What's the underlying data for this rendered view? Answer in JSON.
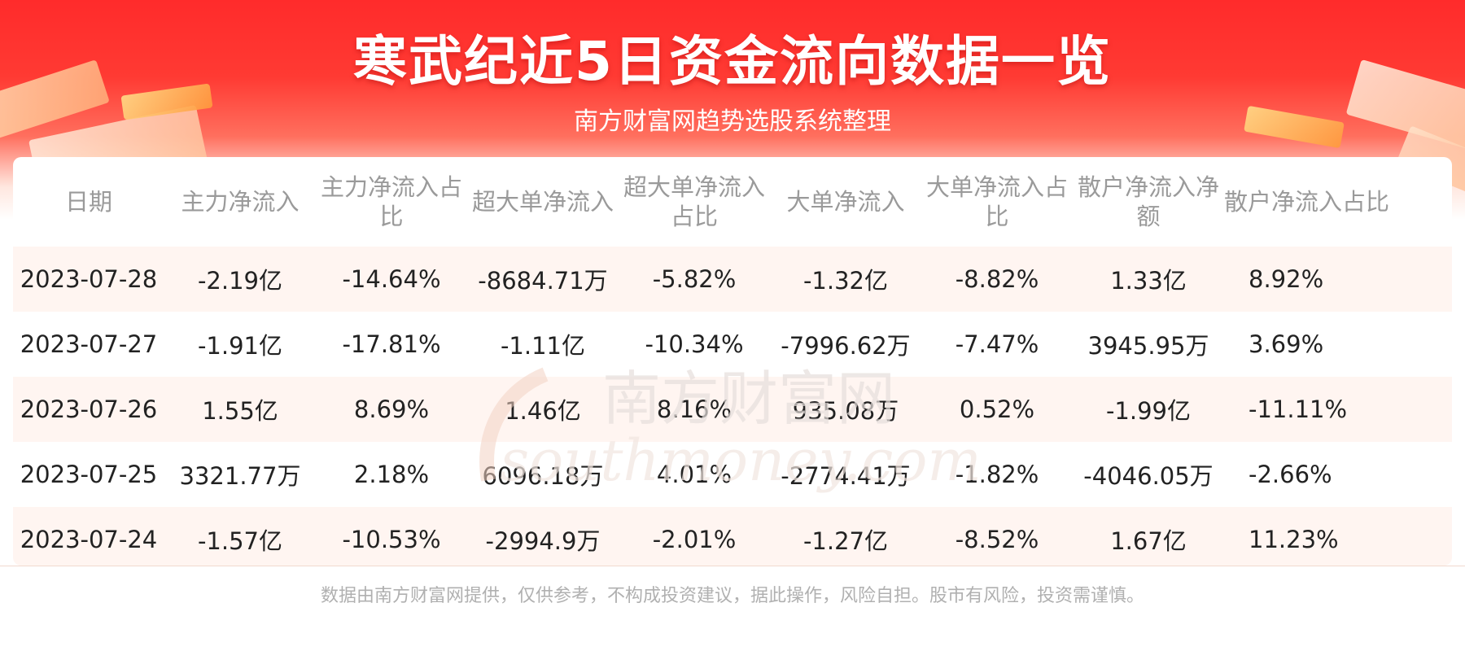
{
  "header": {
    "title": "寒武纪近5日资金流向数据一览",
    "subtitle": "南方财富网趋势选股系统整理"
  },
  "table": {
    "columns": [
      "日期",
      "主力净流入",
      "主力净流入占比",
      "超大单净流入",
      "超大单净流入占比",
      "大单净流入",
      "大单净流入占比",
      "散户净流入净额",
      "散户净流入占比"
    ],
    "rows": [
      [
        "2023-07-28",
        "-2.19亿",
        "-14.64%",
        "-8684.71万",
        "-5.82%",
        "-1.32亿",
        "-8.82%",
        "1.33亿",
        "8.92%"
      ],
      [
        "2023-07-27",
        "-1.91亿",
        "-17.81%",
        "-1.11亿",
        "-10.34%",
        "-7996.62万",
        "-7.47%",
        "3945.95万",
        "3.69%"
      ],
      [
        "2023-07-26",
        "1.55亿",
        "8.69%",
        "1.46亿",
        "8.16%",
        "935.08万",
        "0.52%",
        "-1.99亿",
        "-11.11%"
      ],
      [
        "2023-07-25",
        "3321.77万",
        "2.18%",
        "6096.18万",
        "4.01%",
        "-2774.41万",
        "-1.82%",
        "-4046.05万",
        "-2.66%"
      ],
      [
        "2023-07-24",
        "-1.57亿",
        "-10.53%",
        "-2994.9万",
        "-2.01%",
        "-1.27亿",
        "-8.52%",
        "1.67亿",
        "11.23%"
      ]
    ]
  },
  "watermark": {
    "cn": "南方财富网",
    "en": "southmoney.com"
  },
  "footer": {
    "disclaimer": "数据由南方财富网提供，仅供参考，不构成投资建议，据此操作，风险自担。股市有风险，投资需谨慎。"
  },
  "colors": {
    "banner_red": "#ff2b2b",
    "row_shade": "#fff5f1",
    "header_text": "#9a9a9a"
  }
}
